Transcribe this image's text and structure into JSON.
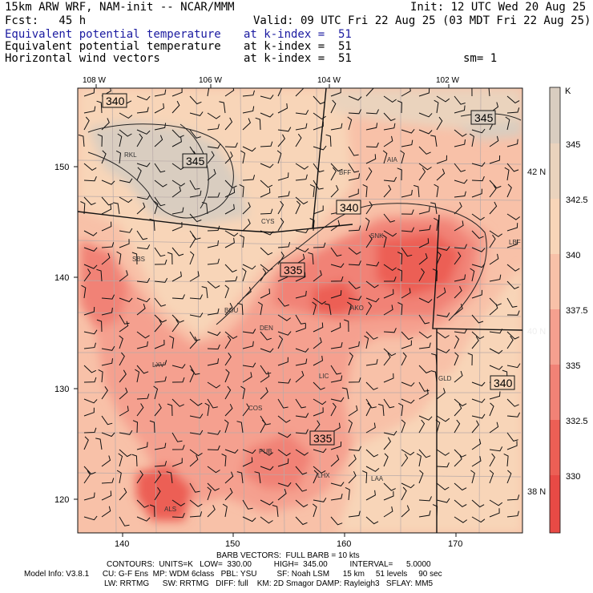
{
  "header": {
    "model_line": "15km ARW WRF, NAM-init -- NCAR/MMM",
    "init_line": "Init: 12 UTC Wed 20 Aug 25",
    "fcst_line": "Fcst:   45 h",
    "valid_line": "Valid: 09 UTC Fri 22 Aug 25 (03 MDT Fri 22 Aug 25)",
    "field1_name": "Equivalent potential temperature",
    "field1_level": "at k-index =  51",
    "field2_name": "Equivalent potential temperature",
    "field2_level": "at k-index =  51",
    "field3_name": "Horizontal wind vectors",
    "field3_level": "at k-index =  51",
    "smooth": "sm= 1"
  },
  "axes": {
    "top_lon_labels": [
      "108 W",
      "106 W",
      "104 W",
      "102 W"
    ],
    "bottom_x_ticks": [
      "140",
      "150",
      "160",
      "170"
    ],
    "left_y_ticks": [
      "150",
      "140",
      "130",
      "120"
    ],
    "right_lat_labels": [
      "42 N",
      "40 N",
      "38 N"
    ]
  },
  "colorbar": {
    "unit": "K",
    "labels": [
      "345",
      "342.5",
      "340",
      "337.5",
      "335",
      "332.5",
      "330"
    ],
    "colors": [
      "#d9cdc0",
      "#ead3bd",
      "#f8d5b8",
      "#f8c1a8",
      "#f5a08f",
      "#f18276",
      "#ec5f55",
      "#e84a45"
    ]
  },
  "contour_labels": [
    "340",
    "345",
    "345",
    "340",
    "335",
    "335",
    "340"
  ],
  "stations": [
    "RKL",
    "BFF",
    "AIA",
    "CYS",
    "SNK",
    "LBF",
    "SBS",
    "BOU",
    "DEN",
    "AKO",
    "LXV",
    "LIC",
    "GLD",
    "COS",
    "PUB",
    "LHX",
    "LAA",
    "ALS"
  ],
  "footer": {
    "barb_line": "BARB VECTORS:  FULL BARB = 10 kts",
    "contours_line": "CONTOURS:  UNITS=K   LOW=  330.00          HIGH=  345.00          INTERVAL=      5.0000",
    "model_info_line": "Model Info: V3.8.1      CU: G-F Ens  MP: WDM 6class   PBL: YSU         SF: Noah LSM      15 km     51 levels     90 sec",
    "physics_line": "LW: RRTMG      SW: RRTMG   DIFF: full    KM: 2D Smagor DAMP: Rayleigh3   SFLAY: MM5"
  }
}
